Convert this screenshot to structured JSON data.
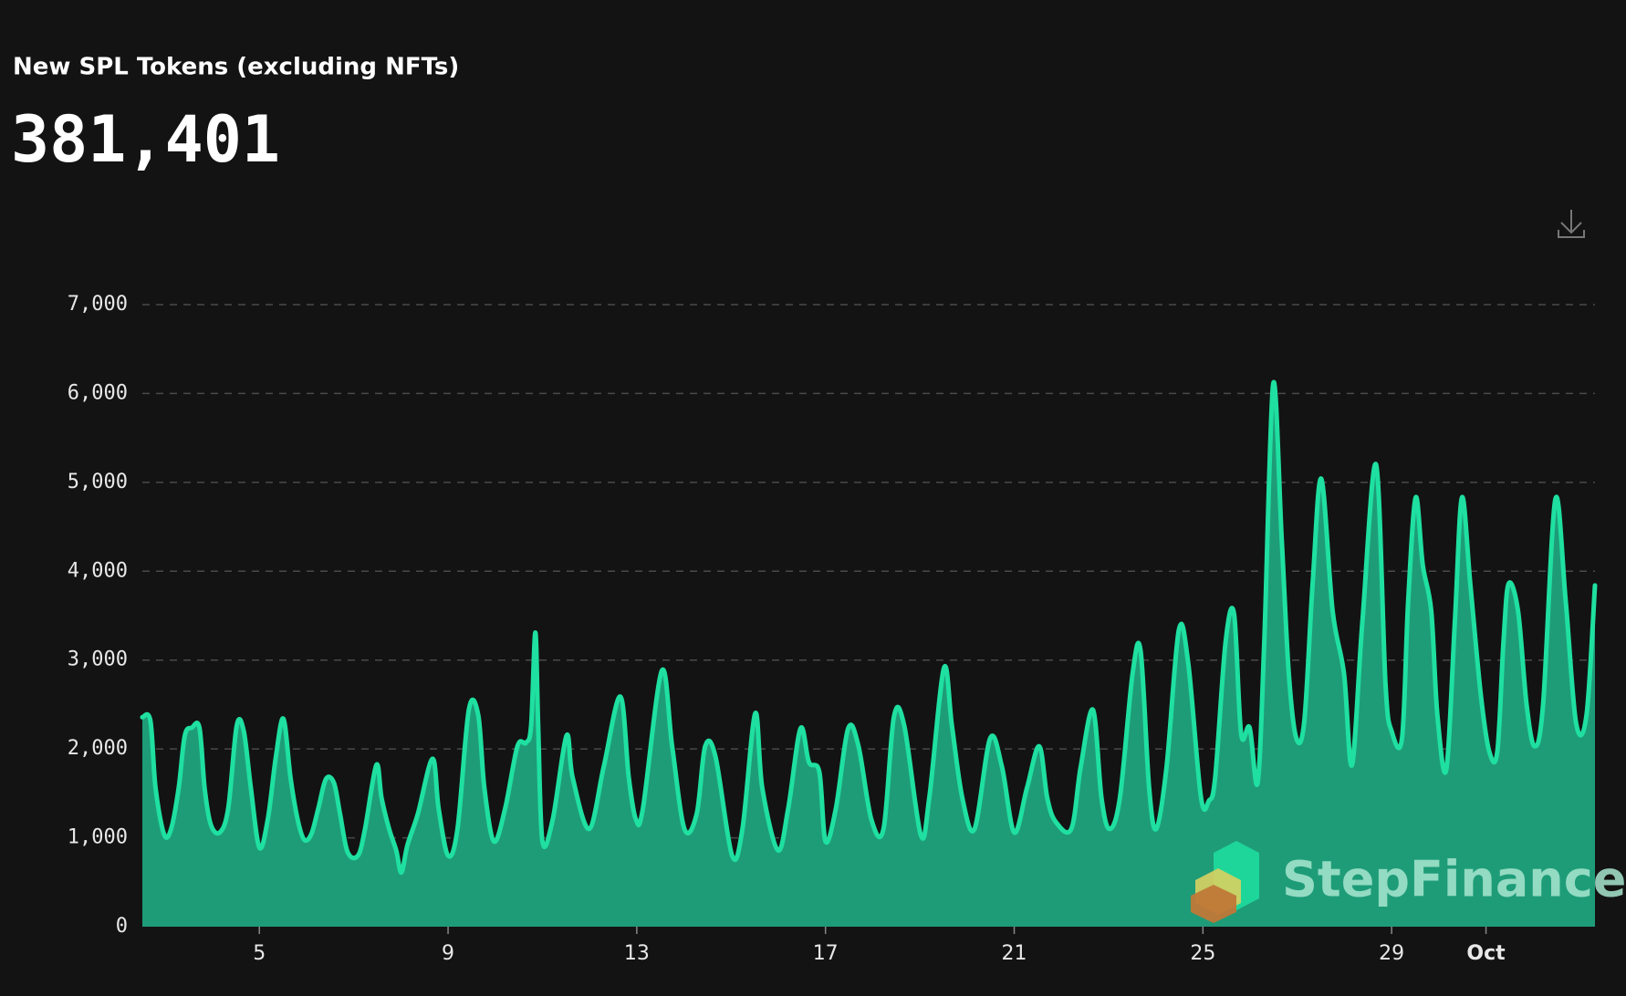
{
  "chart_data": {
    "type": "area",
    "title": "New SPL Tokens (excluding NFTs)",
    "headline": "381,401",
    "watermark": "StepFinance",
    "line_color": "#1fe0a0",
    "area_color": "#1e9c78",
    "grid": true,
    "xlim": [
      2.52,
      33.31
    ],
    "xticks": [
      5,
      9,
      13,
      17,
      21,
      25,
      29,
      {
        "value": 31,
        "label": "Oct"
      }
    ],
    "ylim": [
      0,
      7000
    ],
    "yticks": [
      0,
      {
        "value": 1000,
        "label": "1,000"
      },
      {
        "value": 2000,
        "label": "2,000"
      },
      {
        "value": 3000,
        "label": "3,000"
      },
      {
        "value": 4000,
        "label": "4,000"
      },
      {
        "value": 5000,
        "label": "5,000"
      },
      {
        "value": 6000,
        "label": "6,000"
      },
      {
        "value": 7000,
        "label": "7,000"
      }
    ],
    "x": [
      2.52,
      2.69,
      2.8,
      2.98,
      3.13,
      3.29,
      3.42,
      3.57,
      3.73,
      3.84,
      3.97,
      4.16,
      4.34,
      4.52,
      4.67,
      4.82,
      5.0,
      5.18,
      5.35,
      5.51,
      5.66,
      5.81,
      5.95,
      6.1,
      6.25,
      6.41,
      6.58,
      6.71,
      6.87,
      7.09,
      7.24,
      7.48,
      7.59,
      7.75,
      7.9,
      8.01,
      8.14,
      8.36,
      8.67,
      8.8,
      9.0,
      9.2,
      9.44,
      9.64,
      9.77,
      9.97,
      10.21,
      10.47,
      10.65,
      10.76,
      10.85,
      10.91,
      11.0,
      11.22,
      11.51,
      11.64,
      11.99,
      12.3,
      12.65,
      12.83,
      12.98,
      13.13,
      13.53,
      13.75,
      14.01,
      14.27,
      14.45,
      14.67,
      15.02,
      15.24,
      15.51,
      15.66,
      15.99,
      16.21,
      16.47,
      16.65,
      16.87,
      17.0,
      17.22,
      17.48,
      17.7,
      17.97,
      18.23,
      18.45,
      18.67,
      19.02,
      19.2,
      19.51,
      19.68,
      19.9,
      20.16,
      20.49,
      20.74,
      21.0,
      21.27,
      21.53,
      21.7,
      21.88,
      22.21,
      22.41,
      22.67,
      22.85,
      23.02,
      23.24,
      23.51,
      23.68,
      23.86,
      24.01,
      24.23,
      24.49,
      24.69,
      24.96,
      25.13,
      25.26,
      25.48,
      25.66,
      25.81,
      25.99,
      26.16,
      26.3,
      26.49,
      26.67,
      26.82,
      26.98,
      27.15,
      27.33,
      27.51,
      27.75,
      27.99,
      28.16,
      28.38,
      28.67,
      28.87,
      29.0,
      29.22,
      29.35,
      29.51,
      29.66,
      29.84,
      29.97,
      30.16,
      30.34,
      30.49,
      30.67,
      30.89,
      31.07,
      31.24,
      31.37,
      31.48,
      31.68,
      31.86,
      32.03,
      32.21,
      32.47,
      32.69,
      32.91,
      33.13,
      33.31
    ],
    "values": [
      2357,
      2320,
      1560,
      1040,
      1100,
      1560,
      2150,
      2240,
      2240,
      1560,
      1150,
      1060,
      1330,
      2260,
      2200,
      1560,
      890,
      1210,
      1910,
      2340,
      1680,
      1210,
      980,
      1040,
      1330,
      1660,
      1620,
      1270,
      840,
      800,
      1100,
      1820,
      1450,
      1100,
      860,
      610,
      920,
      1270,
      1890,
      1330,
      800,
      1100,
      2440,
      2380,
      1560,
      960,
      1330,
      2030,
      2070,
      2260,
      3310,
      2260,
      960,
      1210,
      2150,
      1680,
      1100,
      1800,
      2590,
      1680,
      1210,
      1330,
      2880,
      2030,
      1100,
      1270,
      2030,
      1910,
      800,
      1100,
      2400,
      1560,
      860,
      1330,
      2230,
      1850,
      1740,
      960,
      1330,
      2230,
      2030,
      1210,
      1100,
      2360,
      2260,
      1030,
      1450,
      2910,
      2260,
      1450,
      1100,
      2120,
      1800,
      1060,
      1560,
      2030,
      1450,
      1180,
      1100,
      1800,
      2440,
      1450,
      1100,
      1450,
      2850,
      3100,
      1560,
      1100,
      1800,
      3340,
      2960,
      1450,
      1420,
      1680,
      3200,
      3520,
      2170,
      2240,
      1620,
      3200,
      6110,
      4360,
      2850,
      2120,
      2320,
      3900,
      5040,
      3550,
      2850,
      1820,
      3430,
      5200,
      2730,
      2200,
      2120,
      3660,
      4830,
      4070,
      3550,
      2380,
      1770,
      3430,
      4830,
      3840,
      2610,
      1970,
      1970,
      3200,
      3860,
      3550,
      2500,
      2030,
      2500,
      4810,
      3660,
      2290,
      2380,
      3840
    ]
  }
}
